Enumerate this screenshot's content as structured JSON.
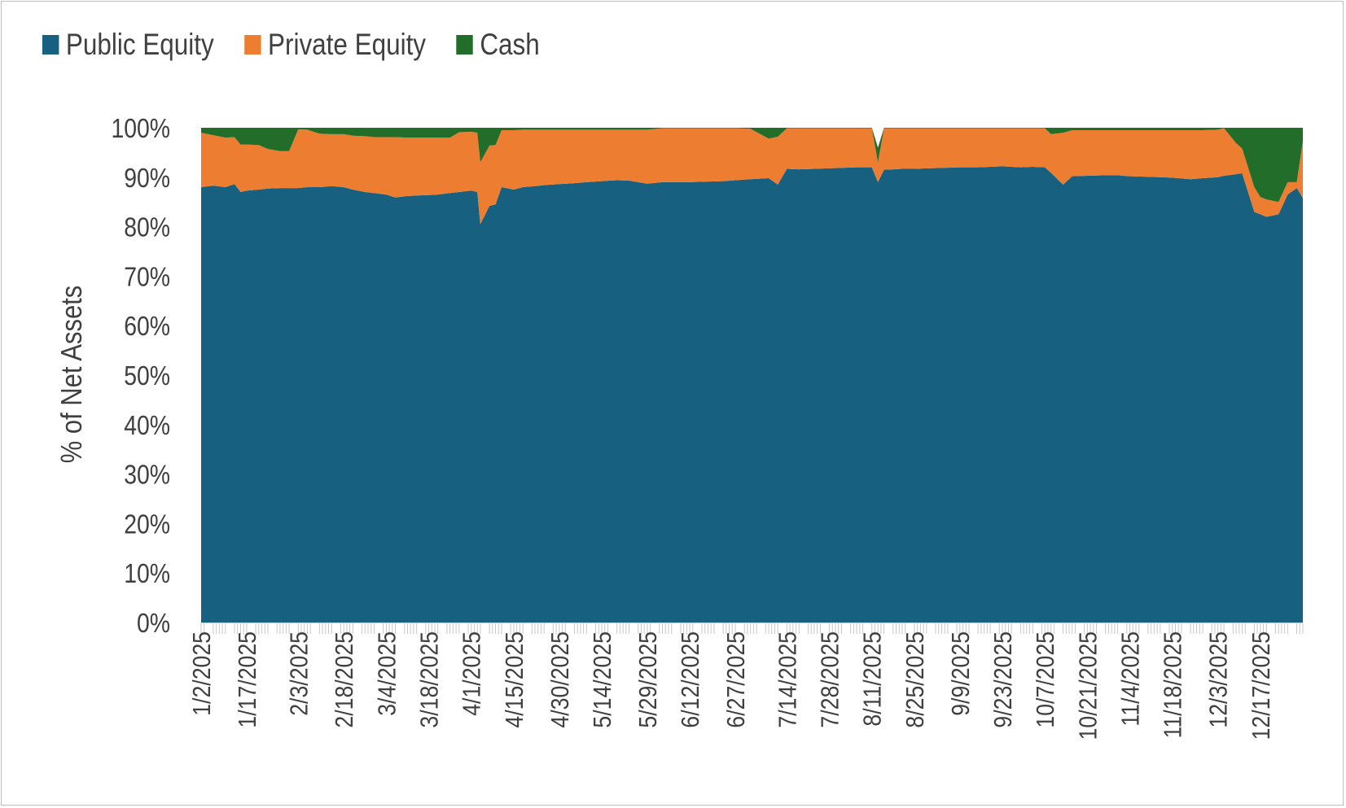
{
  "chart_data": {
    "type": "area",
    "stacked": true,
    "title": "",
    "xlabel": "",
    "ylabel": "% of Net Assets",
    "ylim": [
      0,
      100
    ],
    "y_ticks": [
      "0%",
      "10%",
      "20%",
      "30%",
      "40%",
      "50%",
      "60%",
      "70%",
      "80%",
      "90%",
      "100%"
    ],
    "x_tick_labels": [
      "1/2/2025",
      "1/17/2025",
      "2/3/2025",
      "2/18/2025",
      "3/4/2025",
      "3/18/2025",
      "4/1/2025",
      "4/15/2025",
      "4/30/2025",
      "5/14/2025",
      "5/29/2025",
      "6/12/2025",
      "6/27/2025",
      "7/14/2025",
      "7/28/2025",
      "8/11/2025",
      "8/25/2025",
      "9/9/2025",
      "9/23/2025",
      "10/7/2025",
      "10/21/2025",
      "11/4/2025",
      "11/18/2025",
      "12/3/2025",
      "12/17/2025"
    ],
    "x": [
      "1/2/2025",
      "1/6/2025",
      "1/10/2025",
      "1/13/2025",
      "1/15/2025",
      "1/17/2025",
      "1/21/2025",
      "1/24/2025",
      "1/28/2025",
      "1/31/2025",
      "2/3/2025",
      "2/6/2025",
      "2/10/2025",
      "2/14/2025",
      "2/18/2025",
      "2/21/2025",
      "2/25/2025",
      "2/28/2025",
      "3/4/2025",
      "3/7/2025",
      "3/11/2025",
      "3/14/2025",
      "3/18/2025",
      "3/21/2025",
      "3/25/2025",
      "3/28/2025",
      "4/1/2025",
      "4/3/2025",
      "4/4/2025",
      "4/7/2025",
      "4/9/2025",
      "4/11/2025",
      "4/15/2025",
      "4/18/2025",
      "4/22/2025",
      "4/25/2025",
      "4/30/2025",
      "5/5/2025",
      "5/9/2025",
      "5/14/2025",
      "5/19/2025",
      "5/23/2025",
      "5/29/2025",
      "6/3/2025",
      "6/6/2025",
      "6/12/2025",
      "6/17/2025",
      "6/23/2025",
      "6/27/2025",
      "7/2/2025",
      "7/8/2025",
      "7/11/2025",
      "7/14/2025",
      "7/18/2025",
      "7/23/2025",
      "7/28/2025",
      "8/1/2025",
      "8/6/2025",
      "8/11/2025",
      "8/13/2025",
      "8/15/2025",
      "8/18/2025",
      "8/21/2025",
      "8/25/2025",
      "8/29/2025",
      "9/4/2025",
      "9/9/2025",
      "9/15/2025",
      "9/19/2025",
      "9/23/2025",
      "9/29/2025",
      "10/3/2025",
      "10/7/2025",
      "10/9/2025",
      "10/13/2025",
      "10/16/2025",
      "10/21/2025",
      "10/27/2025",
      "10/31/2025",
      "11/4/2025",
      "11/10/2025",
      "11/14/2025",
      "11/18/2025",
      "11/24/2025",
      "11/28/2025",
      "12/3/2025",
      "12/5/2025",
      "12/9/2025",
      "12/11/2025",
      "12/15/2025",
      "12/17/2025",
      "12/19/2025",
      "12/23/2025",
      "12/26/2025",
      "12/29/2025",
      "12/31/2025"
    ],
    "series": [
      {
        "name": "Public Equity",
        "color": "#17607f",
        "values": [
          88.0,
          88.3,
          88.0,
          88.6,
          87.0,
          87.3,
          87.5,
          87.7,
          87.8,
          87.8,
          87.8,
          88.0,
          88.0,
          88.2,
          88.0,
          87.5,
          87.0,
          86.8,
          86.5,
          85.9,
          86.2,
          86.3,
          86.4,
          86.5,
          86.8,
          87.0,
          87.3,
          87.0,
          80.5,
          84.2,
          84.5,
          88.0,
          87.5,
          88.0,
          88.2,
          88.4,
          88.6,
          88.8,
          89.0,
          89.2,
          89.4,
          89.3,
          88.7,
          89.0,
          89.0,
          89.0,
          89.1,
          89.2,
          89.4,
          89.6,
          89.8,
          88.5,
          91.7,
          91.6,
          91.7,
          91.8,
          91.9,
          92.0,
          92.0,
          89.0,
          91.5,
          91.6,
          91.7,
          91.7,
          91.8,
          91.9,
          92.0,
          92.0,
          92.1,
          92.2,
          92.0,
          92.1,
          92.0,
          90.9,
          88.5,
          90.2,
          90.3,
          90.4,
          90.4,
          90.2,
          90.1,
          90.0,
          89.9,
          89.6,
          89.8,
          90.0,
          90.3,
          90.6,
          90.8,
          83.0,
          82.5,
          82.0,
          82.5,
          86.5,
          87.8,
          85.8
        ]
      },
      {
        "name": "Private Equity",
        "color": "#ed7d31",
        "values": [
          11.0,
          10.2,
          10.0,
          9.5,
          9.6,
          9.3,
          9.0,
          8.0,
          7.5,
          7.5,
          11.9,
          11.6,
          10.8,
          10.5,
          10.7,
          10.9,
          11.3,
          11.3,
          11.6,
          12.2,
          11.8,
          11.7,
          11.6,
          11.5,
          11.2,
          12.1,
          11.9,
          12.0,
          12.5,
          12.2,
          12.0,
          11.5,
          12.0,
          11.6,
          11.4,
          11.2,
          11.0,
          10.8,
          10.6,
          10.4,
          10.2,
          10.3,
          10.9,
          10.9,
          10.9,
          10.9,
          10.8,
          10.7,
          10.5,
          10.2,
          8.0,
          9.7,
          8.2,
          8.3,
          8.2,
          8.1,
          8.0,
          7.9,
          7.9,
          4.0,
          8.4,
          8.3,
          8.2,
          8.2,
          8.1,
          8.0,
          7.9,
          7.9,
          7.8,
          7.7,
          7.9,
          7.8,
          7.9,
          7.8,
          10.5,
          9.3,
          9.2,
          9.1,
          9.1,
          9.3,
          9.4,
          9.5,
          9.6,
          9.9,
          9.7,
          9.6,
          9.6,
          6.3,
          5.0,
          5.0,
          3.5,
          3.5,
          2.5,
          2.5,
          1.2,
          11.5
        ]
      },
      {
        "name": "Cash",
        "color": "#226d2a",
        "values": [
          1.0,
          1.5,
          2.0,
          1.9,
          3.4,
          3.4,
          3.5,
          4.3,
          4.7,
          4.7,
          0.3,
          0.4,
          1.2,
          1.3,
          1.3,
          1.6,
          1.7,
          1.9,
          1.9,
          1.9,
          2.0,
          2.0,
          2.0,
          2.0,
          2.0,
          0.9,
          0.8,
          1.0,
          7.0,
          3.6,
          3.5,
          0.5,
          0.5,
          0.4,
          0.4,
          0.4,
          0.4,
          0.4,
          0.4,
          0.4,
          0.4,
          0.4,
          0.4,
          0.1,
          0.1,
          0.1,
          0.1,
          0.1,
          0.1,
          0.2,
          2.2,
          1.8,
          0.1,
          0.1,
          0.1,
          0.1,
          0.1,
          0.1,
          0.1,
          3.0,
          0.1,
          0.1,
          0.1,
          0.1,
          0.1,
          0.1,
          0.1,
          0.1,
          0.1,
          0.1,
          0.1,
          0.1,
          0.1,
          1.3,
          1.0,
          0.5,
          0.5,
          0.5,
          0.5,
          0.5,
          0.5,
          0.5,
          0.5,
          0.5,
          0.5,
          0.4,
          0.1,
          3.1,
          4.2,
          12.0,
          14.0,
          14.5,
          15.0,
          11.0,
          11.0,
          2.7
        ]
      }
    ],
    "grid": false,
    "legend_position": "top-left"
  }
}
